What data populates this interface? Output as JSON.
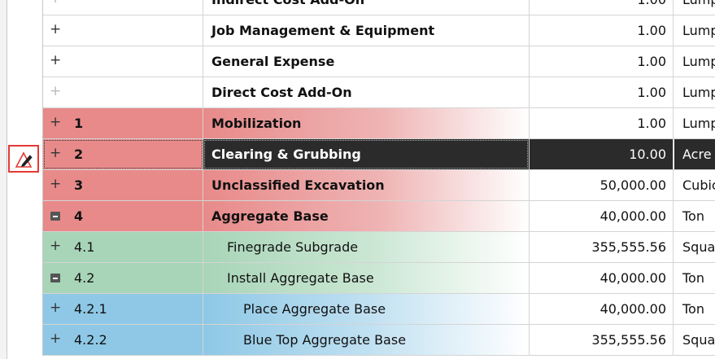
{
  "rows": [
    {
      "wbs": "",
      "desc": "Indirect Cost Add-On",
      "qty": "1.00",
      "unit": "Lump",
      "style": "plain",
      "expander": "plus-faded",
      "bold": true,
      "indent": 0
    },
    {
      "wbs": "",
      "desc": "Job Management & Equipment",
      "qty": "1.00",
      "unit": "Lump",
      "style": "plain",
      "expander": "plus",
      "bold": true,
      "indent": 0
    },
    {
      "wbs": "",
      "desc": "General Expense",
      "qty": "1.00",
      "unit": "Lump",
      "style": "plain",
      "expander": "plus",
      "bold": true,
      "indent": 0
    },
    {
      "wbs": "",
      "desc": "Direct Cost Add-On",
      "qty": "1.00",
      "unit": "Lump",
      "style": "plain",
      "expander": "plus-faded",
      "bold": true,
      "indent": 0
    },
    {
      "wbs": "1",
      "desc": "Mobilization",
      "qty": "1.00",
      "unit": "Lump",
      "style": "red",
      "expander": "plus",
      "bold": true,
      "indent": 0
    },
    {
      "wbs": "2",
      "desc": "Clearing & Grubbing",
      "qty": "10.00",
      "unit": "Acre",
      "style": "red",
      "expander": "plus",
      "bold": true,
      "indent": 0,
      "selected": true
    },
    {
      "wbs": "3",
      "desc": "Unclassified Excavation",
      "qty": "50,000.00",
      "unit": "Cubic",
      "style": "red",
      "expander": "plus",
      "bold": true,
      "indent": 0
    },
    {
      "wbs": "4",
      "desc": "Aggregate Base",
      "qty": "40,000.00",
      "unit": "Ton",
      "style": "red",
      "expander": "minus",
      "bold": true,
      "indent": 0
    },
    {
      "wbs": "4.1",
      "desc": "Finegrade Subgrade",
      "qty": "355,555.56",
      "unit": "Squa",
      "style": "green",
      "expander": "plus",
      "bold": false,
      "indent": 1
    },
    {
      "wbs": "4.2",
      "desc": "Install Aggregate Base",
      "qty": "40,000.00",
      "unit": "Ton",
      "style": "green",
      "expander": "minus",
      "bold": false,
      "indent": 1
    },
    {
      "wbs": "4.2.1",
      "desc": "Place Aggregate Base",
      "qty": "40,000.00",
      "unit": "Ton",
      "style": "blue",
      "expander": "plus",
      "bold": false,
      "indent": 2
    },
    {
      "wbs": "4.2.2",
      "desc": "Blue Top Aggregate Base",
      "qty": "355,555.56",
      "unit": "Squa",
      "style": "blue",
      "expander": "plus",
      "bold": false,
      "indent": 2
    }
  ],
  "edit_indicator": {
    "icon": "pencil-edit-icon",
    "border_color": "#e53935"
  },
  "colors": {
    "selected_bg": "#2b2b2b",
    "red_row": "#e88a8a",
    "green_row": "#a8d5b8",
    "blue_row": "#8ec8e6"
  }
}
